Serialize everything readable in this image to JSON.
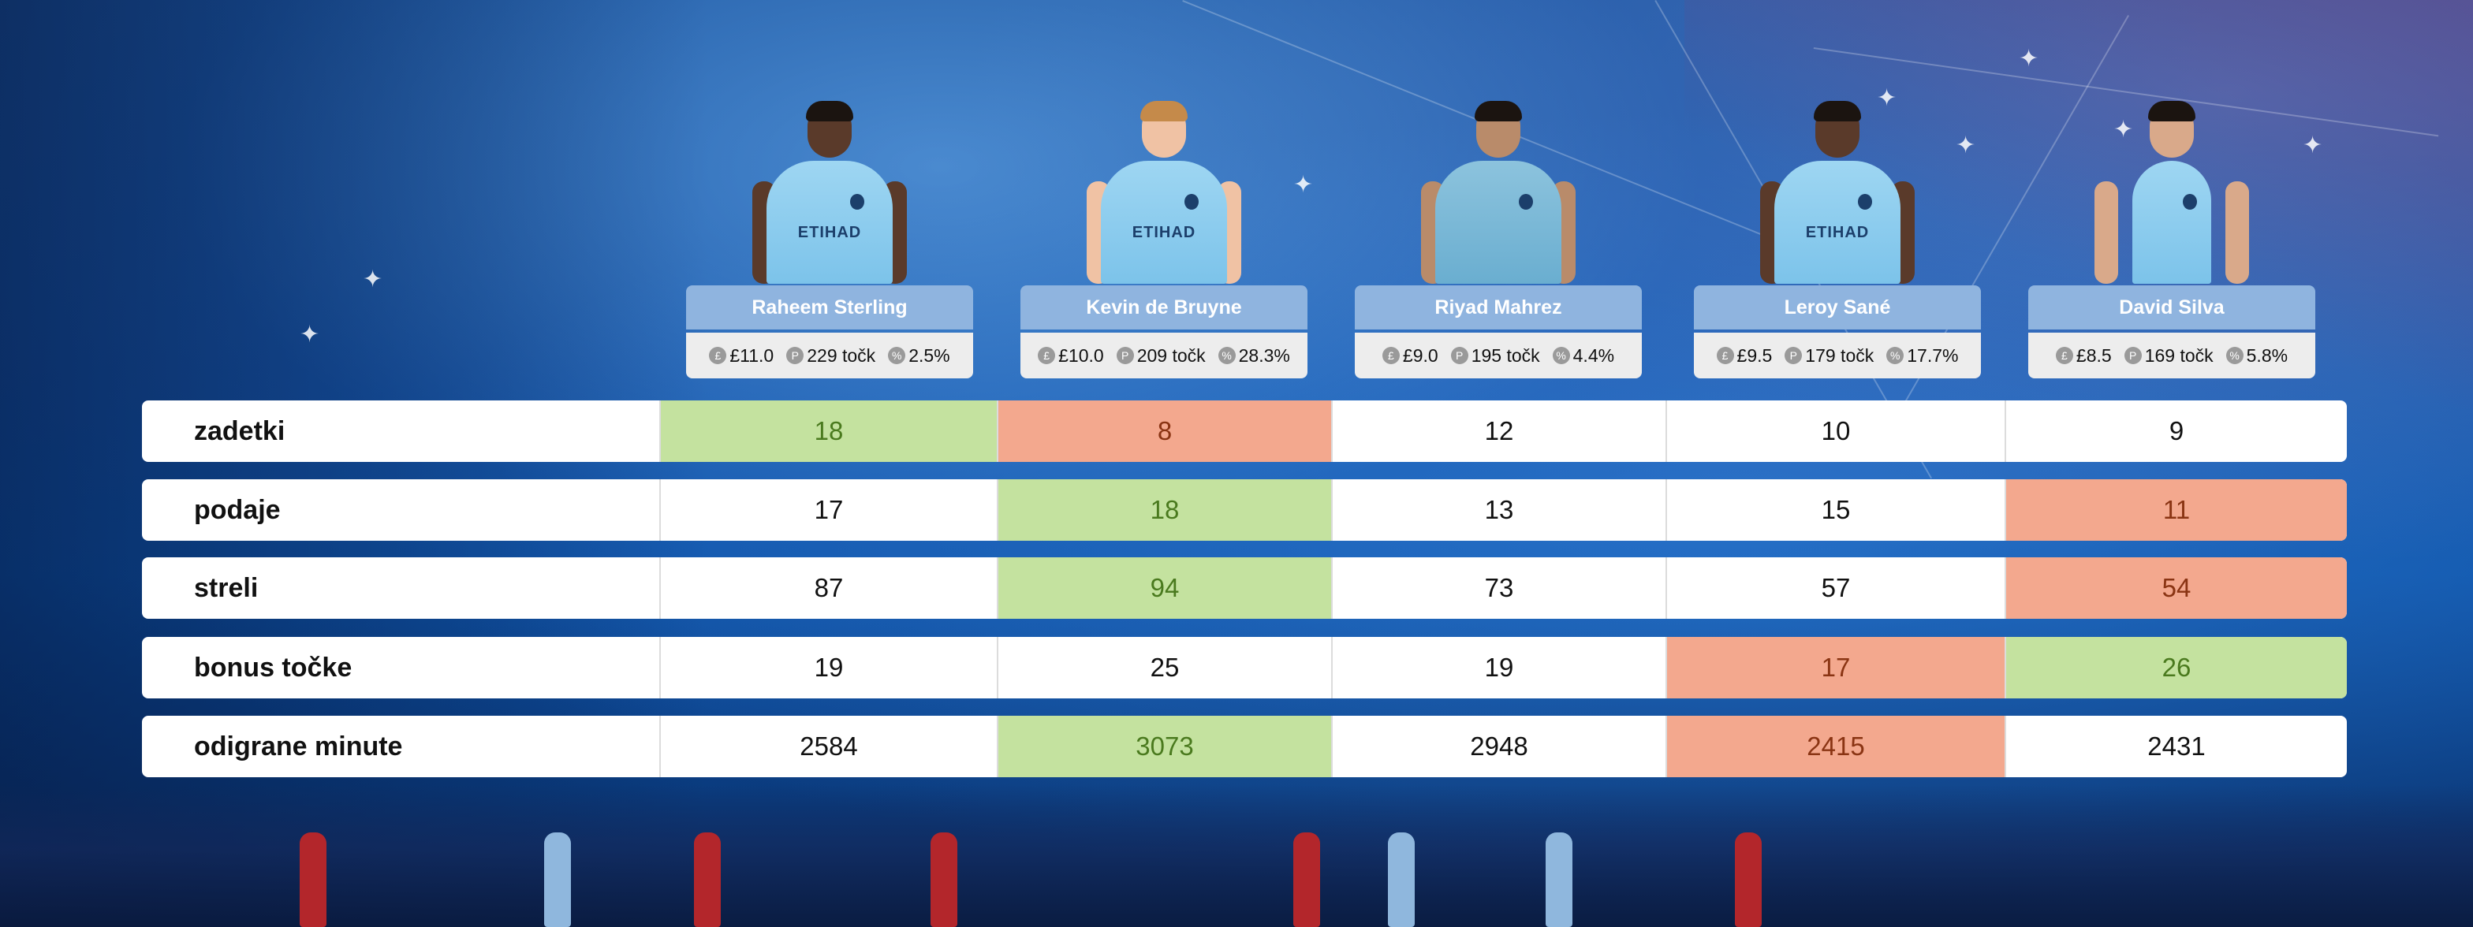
{
  "players": [
    {
      "name": "Raheem Sterling",
      "price": "£11.0",
      "points": "229 točk",
      "ownership": "2.5%",
      "skin": "#5a3a2a"
    },
    {
      "name": "Kevin de Bruyne",
      "price": "£10.0",
      "points": "209 točk",
      "ownership": "28.3%",
      "skin": "#f0c2a4"
    },
    {
      "name": "Riyad Mahrez",
      "price": "£9.0",
      "points": "195 točk",
      "ownership": "4.4%",
      "skin": "#b98b6a"
    },
    {
      "name": "Leroy Sané",
      "price": "£9.5",
      "points": "179 točk",
      "ownership": "17.7%",
      "skin": "#5a3a2a"
    },
    {
      "name": "David Silva",
      "price": "£8.5",
      "points": "169 točk",
      "ownership": "5.8%",
      "skin": "#d9a98a"
    }
  ],
  "sponsor_text": "ETIHAD",
  "icons": {
    "price": "£",
    "points": "P",
    "ownership": "%"
  },
  "rows": [
    {
      "label": "zadetki",
      "values": [
        "18",
        "8",
        "12",
        "10",
        "9"
      ],
      "status": [
        "best",
        "worst",
        "",
        "",
        ""
      ]
    },
    {
      "label": "podaje",
      "values": [
        "17",
        "18",
        "13",
        "15",
        "11"
      ],
      "status": [
        "",
        "best",
        "",
        "",
        "worst"
      ]
    },
    {
      "label": "streli",
      "values": [
        "87",
        "94",
        "73",
        "57",
        "54"
      ],
      "status": [
        "",
        "best",
        "",
        "",
        "worst"
      ]
    },
    {
      "label": "bonus točke",
      "values": [
        "19",
        "25",
        "19",
        "17",
        "26"
      ],
      "status": [
        "",
        "",
        "",
        "worst",
        "best"
      ]
    },
    {
      "label": "odigrane minute",
      "values": [
        "2584",
        "3073",
        "2948",
        "2415",
        "2431"
      ],
      "status": [
        "",
        "best",
        "",
        "worst",
        ""
      ]
    }
  ],
  "colors": {
    "best": "#c4e29f",
    "worst": "#f3a88e",
    "name_tag": "#8fb4df",
    "stats_pill": "#ededed"
  }
}
